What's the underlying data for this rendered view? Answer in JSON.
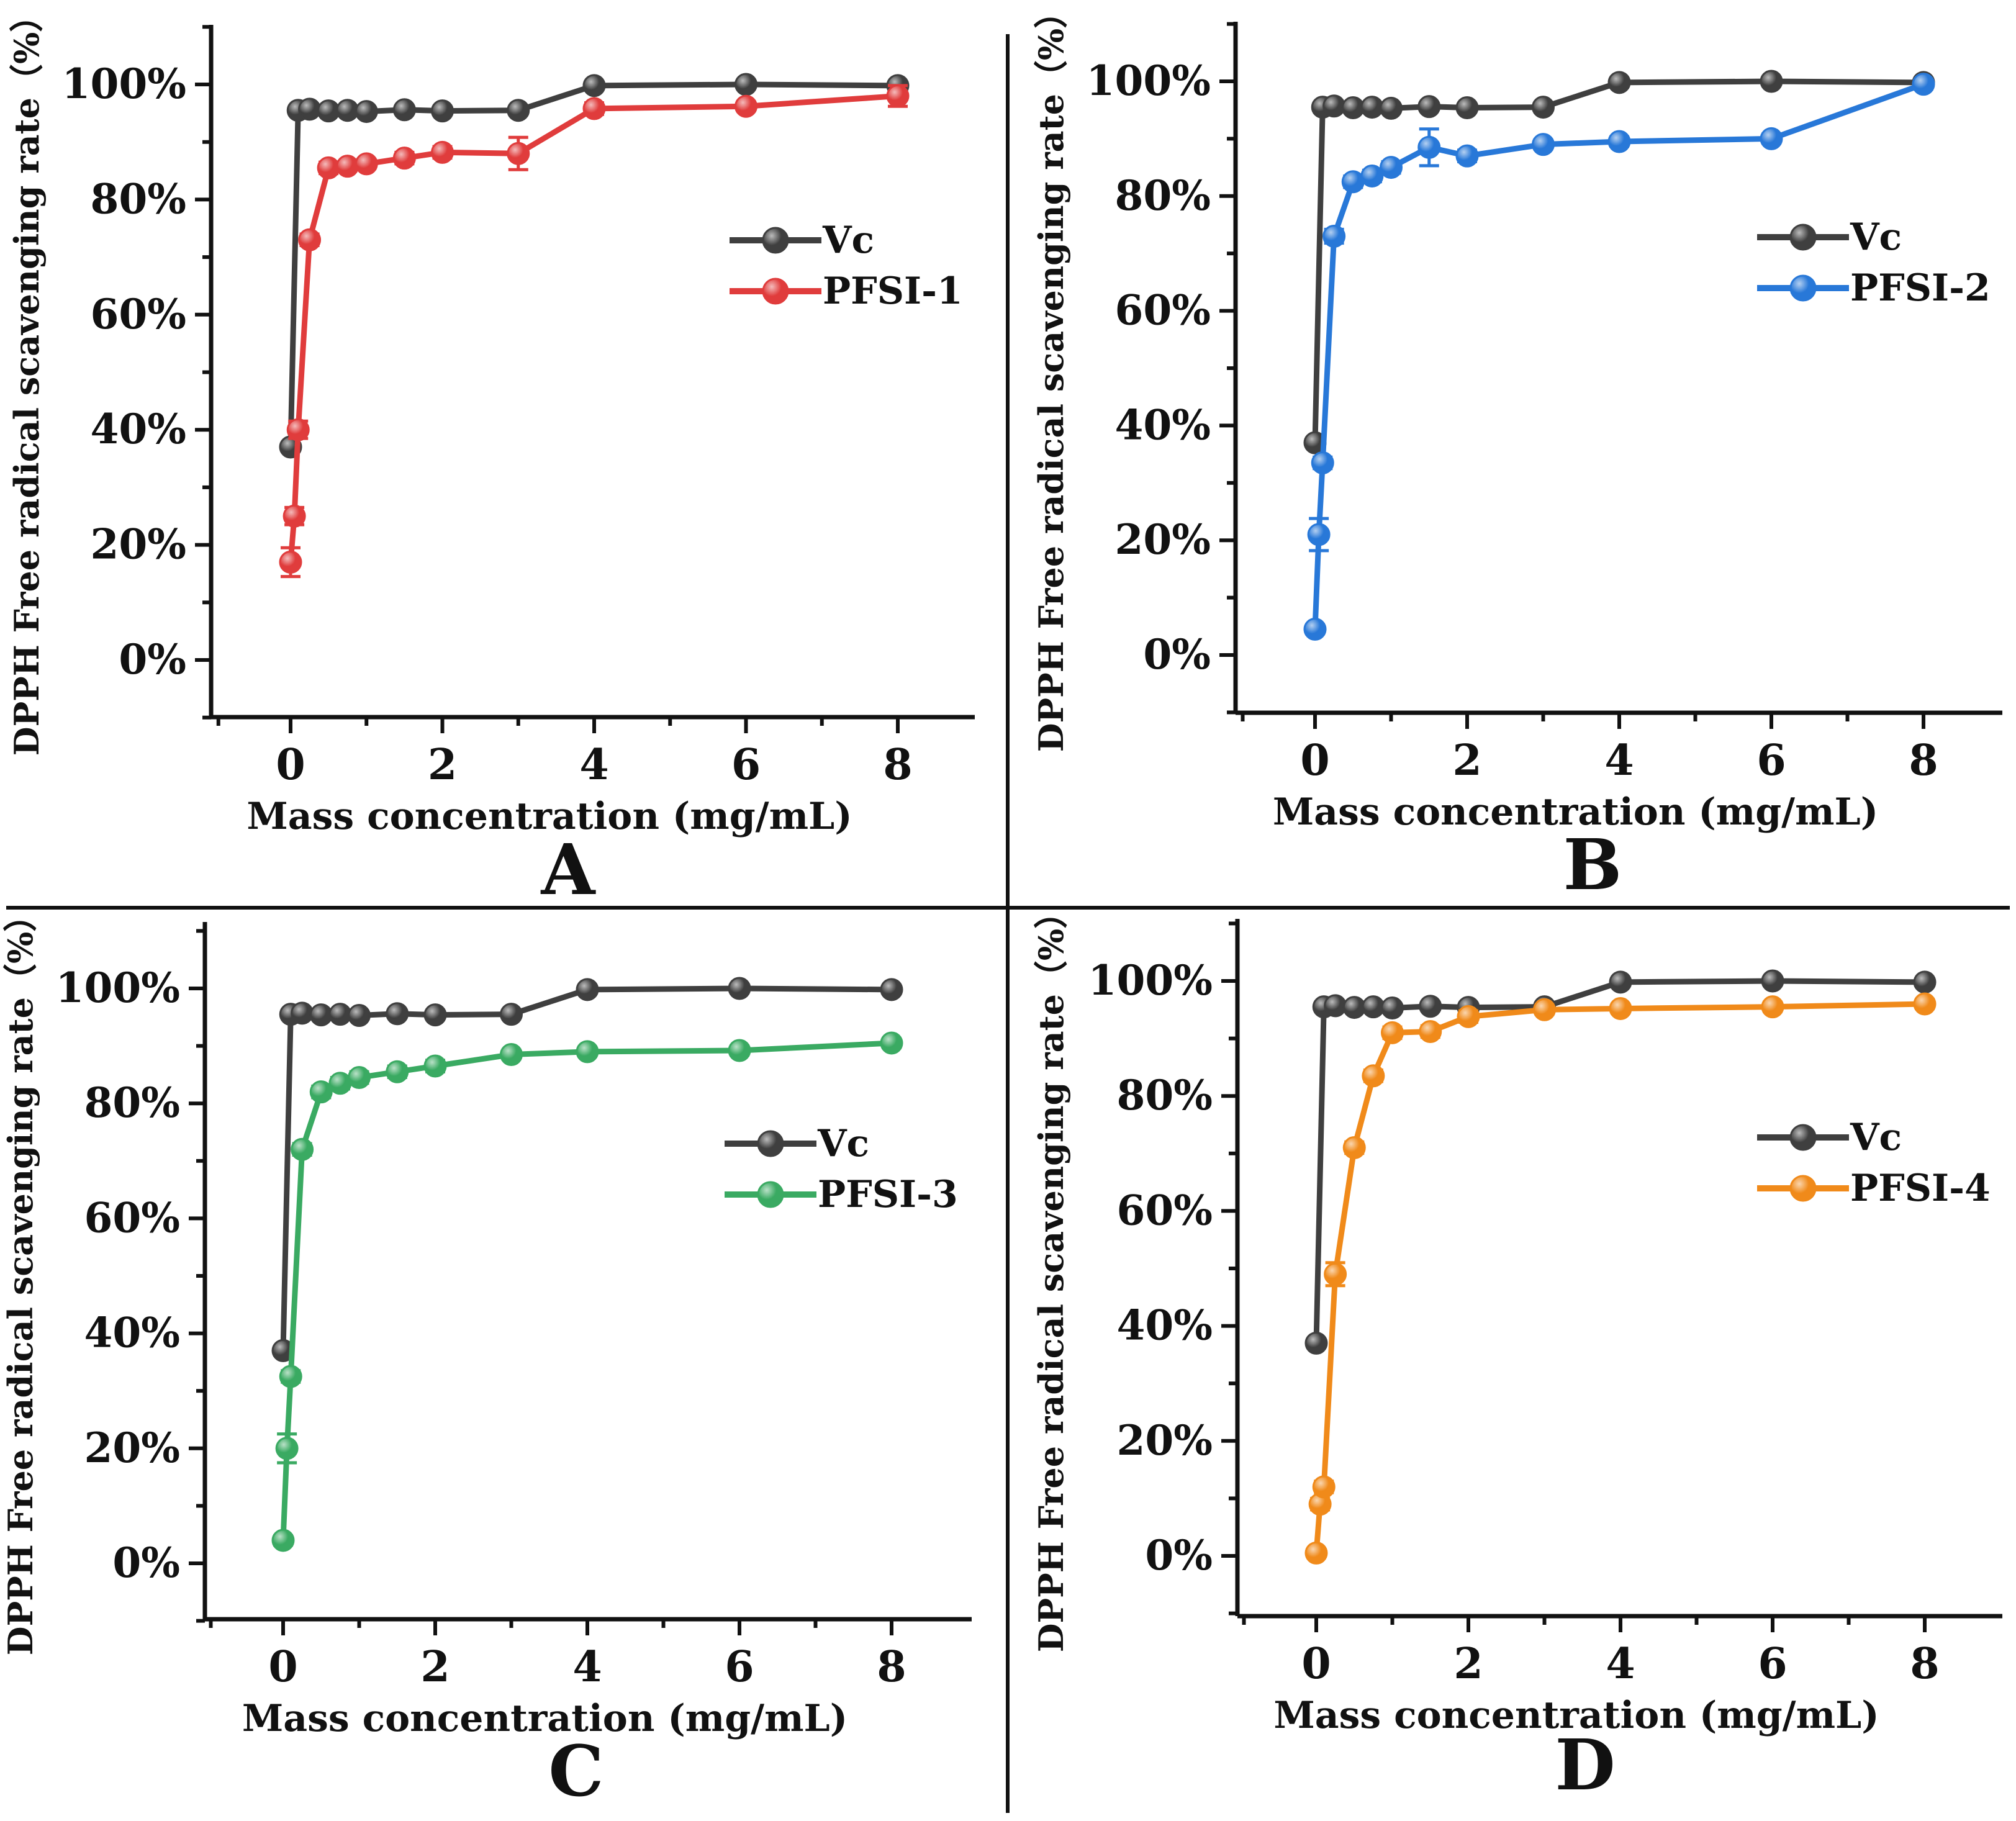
{
  "figure": {
    "panel_labels": [
      "A",
      "B",
      "C",
      "D"
    ]
  },
  "chart_data": [
    {
      "panel": "A",
      "type": "line",
      "xlabel": "Mass concentration (mg/mL)",
      "ylabel": "DPPH Free radical scavenging rate（%）",
      "xlim": [
        -1,
        9
      ],
      "ylim": [
        -10,
        110
      ],
      "xticks": [
        "0",
        "2",
        "4",
        "6",
        "8"
      ],
      "yticks": [
        "0%",
        "20%",
        "40%",
        "60%",
        "80%",
        "100%"
      ],
      "legend_position": "right-middle",
      "series": [
        {
          "name": "Vc",
          "color": "#3f3f3f",
          "x": [
            0,
            0.1,
            0.25,
            0.5,
            0.75,
            1,
            1.5,
            2,
            3,
            4,
            6,
            8
          ],
          "y": [
            37,
            95.5,
            95.7,
            95.4,
            95.5,
            95.3,
            95.6,
            95.4,
            95.5,
            99.8,
            100,
            99.8
          ],
          "err": [
            0,
            0,
            0,
            0,
            0,
            0,
            0,
            0,
            0,
            0,
            0,
            0
          ]
        },
        {
          "name": "PFSI-1",
          "color": "#e03c3c",
          "x": [
            0,
            0.05,
            0.1,
            0.25,
            0.5,
            0.75,
            1,
            1.5,
            2,
            3,
            4,
            6,
            8
          ],
          "y": [
            17,
            25,
            40,
            73,
            85.5,
            85.8,
            86.2,
            87.2,
            88.2,
            88,
            95.8,
            96.2,
            98
          ],
          "err": [
            2.5,
            1.5,
            1.5,
            1,
            1,
            0.8,
            0.8,
            1,
            1,
            2.8,
            1,
            0.8,
            1.8
          ]
        }
      ]
    },
    {
      "panel": "B",
      "type": "line",
      "xlabel": "Mass concentration (mg/mL)",
      "ylabel": "DPPH Free radical scavenging rate（%）",
      "xlim": [
        -1,
        9
      ],
      "ylim": [
        -10,
        110
      ],
      "xticks": [
        "0",
        "2",
        "4",
        "6",
        "8"
      ],
      "yticks": [
        "0%",
        "20%",
        "40%",
        "60%",
        "80%",
        "100%"
      ],
      "legend_position": "right-middle",
      "series": [
        {
          "name": "Vc",
          "color": "#3f3f3f",
          "x": [
            0,
            0.1,
            0.25,
            0.5,
            0.75,
            1,
            1.5,
            2,
            3,
            4,
            6,
            8
          ],
          "y": [
            37,
            95.5,
            95.7,
            95.4,
            95.5,
            95.3,
            95.6,
            95.4,
            95.5,
            99.8,
            100,
            99.8
          ],
          "err": [
            0,
            0,
            0,
            0,
            0,
            0,
            0,
            0,
            0,
            0,
            0,
            0
          ]
        },
        {
          "name": "PFSI-2",
          "color": "#2878d8",
          "x": [
            0,
            0.05,
            0.1,
            0.25,
            0.5,
            0.75,
            1,
            1.5,
            2,
            3,
            4,
            6,
            8
          ],
          "y": [
            4.5,
            21,
            33.5,
            73,
            82.5,
            83.5,
            85,
            88.5,
            87,
            89,
            89.5,
            90,
            99.5
          ],
          "err": [
            0.8,
            2.8,
            1,
            1.2,
            1,
            1,
            1,
            3.2,
            1,
            0.8,
            0.8,
            0.8,
            0.8
          ]
        }
      ]
    },
    {
      "panel": "C",
      "type": "line",
      "xlabel": "Mass concentration (mg/mL)",
      "ylabel": "DPPH Free radical scavenging rate（%）",
      "xlim": [
        -1,
        9
      ],
      "ylim": [
        -10,
        110
      ],
      "xticks": [
        "0",
        "2",
        "4",
        "6",
        "8"
      ],
      "yticks": [
        "0%",
        "20%",
        "40%",
        "60%",
        "80%",
        "100%"
      ],
      "legend_position": "right-middle",
      "series": [
        {
          "name": "Vc",
          "color": "#3f3f3f",
          "x": [
            0,
            0.1,
            0.25,
            0.5,
            0.75,
            1,
            1.5,
            2,
            3,
            4,
            6,
            8
          ],
          "y": [
            37,
            95.5,
            95.7,
            95.4,
            95.5,
            95.3,
            95.6,
            95.4,
            95.5,
            99.8,
            100,
            99.8
          ],
          "err": [
            0,
            0,
            0,
            0,
            0,
            0,
            0,
            0,
            0,
            0,
            0,
            0
          ]
        },
        {
          "name": "PFSI-3",
          "color": "#3aaa62",
          "x": [
            0,
            0.05,
            0.1,
            0.25,
            0.5,
            0.75,
            1,
            1.5,
            2,
            3,
            4,
            6,
            8
          ],
          "y": [
            4,
            20,
            32.5,
            72,
            82,
            83.5,
            84.5,
            85.5,
            86.5,
            88.5,
            89,
            89.2,
            90.5
          ],
          "err": [
            0.8,
            2.5,
            1,
            1,
            1,
            1,
            1,
            1,
            1,
            0.8,
            0.8,
            0.8,
            0.8
          ]
        }
      ]
    },
    {
      "panel": "D",
      "type": "line",
      "xlabel": "Mass concentration (mg/mL)",
      "ylabel": "DPPH Free radical scavenging rate（%）",
      "xlim": [
        -1,
        9
      ],
      "ylim": [
        -10,
        110
      ],
      "xticks": [
        "0",
        "2",
        "4",
        "6",
        "8"
      ],
      "yticks": [
        "0%",
        "20%",
        "40%",
        "60%",
        "80%",
        "100%"
      ],
      "legend_position": "right-middle",
      "series": [
        {
          "name": "Vc",
          "color": "#3f3f3f",
          "x": [
            0,
            0.1,
            0.25,
            0.5,
            0.75,
            1,
            1.5,
            2,
            3,
            4,
            6,
            8
          ],
          "y": [
            37,
            95.5,
            95.7,
            95.4,
            95.5,
            95.3,
            95.6,
            95.4,
            95.5,
            99.8,
            100,
            99.8
          ],
          "err": [
            0,
            0,
            0,
            0,
            0,
            0,
            0,
            0,
            0,
            0,
            0,
            0
          ]
        },
        {
          "name": "PFSI-4",
          "color": "#f08a1a",
          "x": [
            0,
            0.05,
            0.1,
            0.25,
            0.5,
            0.75,
            1,
            1.5,
            2,
            3,
            4,
            6,
            8
          ],
          "y": [
            0.5,
            9,
            12,
            49,
            71,
            83.5,
            91,
            91.2,
            93.8,
            95,
            95.2,
            95.5,
            96
          ],
          "err": [
            0.5,
            1,
            1,
            2,
            1,
            1,
            1,
            1,
            1,
            0.8,
            0.8,
            0.8,
            0.8
          ]
        }
      ]
    }
  ]
}
